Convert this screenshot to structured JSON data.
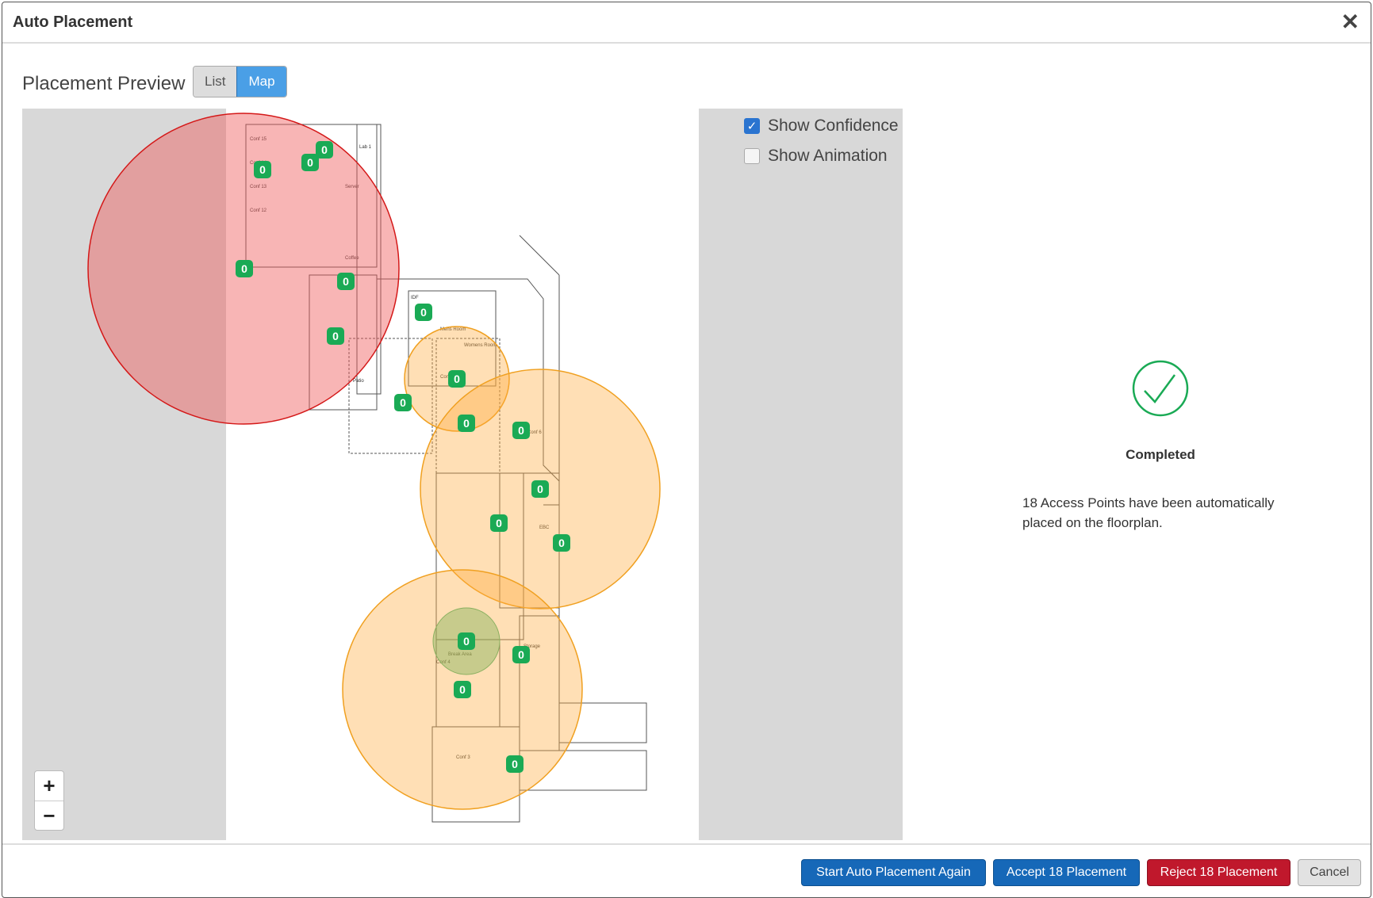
{
  "dialog": {
    "title": "Auto Placement",
    "close_icon": "close-icon"
  },
  "preview": {
    "label": "Placement Preview",
    "views": [
      "List",
      "Map"
    ],
    "selected": "Map"
  },
  "options": [
    {
      "label": "Show Confidence",
      "checked": true
    },
    {
      "label": "Show Animation",
      "checked": false
    }
  ],
  "zoom": {
    "in": "+",
    "out": "−"
  },
  "access_points": [
    "0",
    "0",
    "0",
    "0",
    "0",
    "0",
    "0",
    "0",
    "0",
    "0",
    "0",
    "0",
    "0",
    "0",
    "0",
    "0",
    "0",
    "0"
  ],
  "rooms": [
    "Conf 15",
    "Conf 14",
    "Conf 13",
    "Conf 12",
    "Lab 1",
    "Server",
    "Coffee",
    "IDF",
    "Mens Room",
    "Womens Room",
    "Conf 7",
    "Patio",
    "Conf 6",
    "EBC",
    "Storage",
    "Conf 4",
    "Conf 3",
    "Break Area"
  ],
  "status": {
    "title": "Completed",
    "message": "18 Access Points have been automatically placed on the floorplan.",
    "color": "#1aaa55"
  },
  "footer": {
    "start_again": "Start Auto Placement Again",
    "accept": "Accept 18 Placement",
    "reject": "Reject 18 Placement",
    "cancel": "Cancel"
  }
}
